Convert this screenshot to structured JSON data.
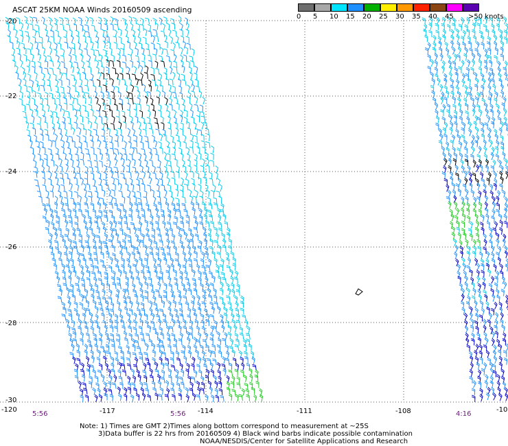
{
  "title": "ASCAT 25KM NOAA Winds 20160509 ascending",
  "legend": {
    "unit_label": ">50 knots",
    "bins": [
      {
        "label": "0",
        "color": "#6e6e6e"
      },
      {
        "label": "5",
        "color": "#a8a8a8"
      },
      {
        "label": "10",
        "color": "#00e5ff"
      },
      {
        "label": "15",
        "color": "#1e90ff"
      },
      {
        "label": "20",
        "color": "#00b000"
      },
      {
        "label": "25",
        "color": "#ffee00"
      },
      {
        "label": "30",
        "color": "#ff9900"
      },
      {
        "label": "35",
        "color": "#ff2200"
      },
      {
        "label": "40",
        "color": "#8b4513"
      },
      {
        "label": "45",
        "color": "#ff00ff"
      },
      {
        "label": "",
        "color": "#5a00b0"
      }
    ]
  },
  "map": {
    "lat_labels": [
      "-20",
      "-22",
      "-24",
      "-26",
      "-28",
      "-30"
    ],
    "lon_labels": [
      "-120",
      "-117",
      "-114",
      "-111",
      "-108",
      "-10"
    ],
    "time_labels": [
      "5:56",
      "5:56",
      "4:16"
    ]
  },
  "notes": {
    "line1": "Note: 1) Times are GMT 2)Times along bottom correspond to measurement at ~25S",
    "line2": "3)Data buffer is 22 hrs from 20160509 4) Black wind barbs indicate possible contamination",
    "line3": "NOAA/NESDIS/Center for Satellite Applications and Research"
  },
  "colors": {
    "barb_light": "#00ccee",
    "barb_mid": "#1e90ff",
    "barb_dark": "#0000cc",
    "barb_green": "#22cc22",
    "barb_black": "#000000"
  }
}
